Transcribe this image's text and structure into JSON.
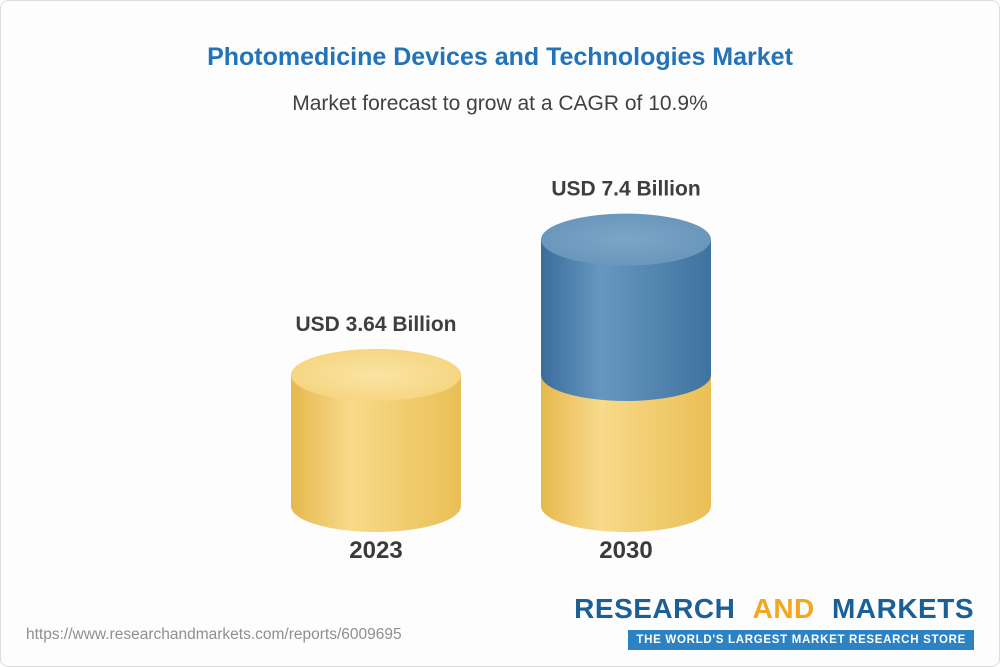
{
  "header": {
    "title": "Photomedicine Devices and Technologies Market",
    "subtitle": "Market forecast to grow at a CAGR of 10.9%"
  },
  "chart_data": {
    "type": "bar",
    "variant": "3d-cylinder",
    "title": "Photomedicine Devices and Technologies Market",
    "subtitle": "Market forecast to grow at a CAGR of 10.9%",
    "unit": "USD Billion",
    "cagr_percent": 10.9,
    "categories": [
      "2023",
      "2030"
    ],
    "values": [
      3.64,
      7.4
    ],
    "ylim": [
      0,
      8
    ],
    "legend": "none",
    "bars": [
      {
        "category": "2023",
        "value": 3.64,
        "value_label": "USD 3.64 Billion",
        "segments": [
          {
            "value": 3.64,
            "color_key": "base"
          }
        ]
      },
      {
        "category": "2030",
        "value": 7.4,
        "value_label": "USD 7.4 Billion",
        "segments": [
          {
            "value": 3.64,
            "color_key": "base"
          },
          {
            "value": 3.76,
            "color_key": "growth"
          }
        ]
      }
    ],
    "colors": {
      "base": "#f2cd6d",
      "growth": "#4d80ac"
    }
  },
  "footer": {
    "url": "https://www.researchandmarkets.com/reports/6009695",
    "logo": {
      "research": "RESEARCH",
      "and": "AND",
      "markets": "MARKETS",
      "tagline": "THE WORLD'S LARGEST MARKET RESEARCH STORE"
    }
  },
  "colors": {
    "title_blue": "#2273b8",
    "logo_blue": "#1a5f95",
    "logo_gold": "#f2a71f",
    "tagline_bar_blue": "#2d82c4"
  }
}
